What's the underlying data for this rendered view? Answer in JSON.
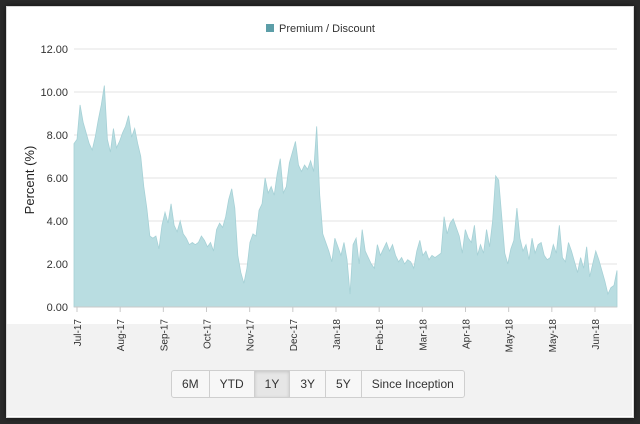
{
  "chart_data": {
    "type": "area",
    "legend": {
      "label": "Premium / Discount",
      "position": "top-center"
    },
    "ylabel": "Percent (%)",
    "ylim": [
      0,
      12
    ],
    "yticks": [
      "12.00",
      "10.00",
      "8.00",
      "6.00",
      "4.00",
      "2.00",
      "0.00"
    ],
    "ytick_values": [
      12,
      10,
      8,
      6,
      4,
      2,
      0
    ],
    "xticks": [
      "Jul-17",
      "Aug-17",
      "Sep-17",
      "Oct-17",
      "Nov-17",
      "Dec-17",
      "Jan-18",
      "Feb-18",
      "Mar-18",
      "Apr-18",
      "May-18",
      "May-18",
      "Jun-18"
    ],
    "grid": true,
    "colors": {
      "fill": "#b9dde1",
      "stroke": "#a6d1d6",
      "legend": "#5c9ea8"
    },
    "x": [
      "2017-07-01",
      "2017-07-03",
      "2017-07-05",
      "2017-07-07",
      "2017-07-09",
      "2017-07-11",
      "2017-07-13",
      "2017-07-15",
      "2017-07-17",
      "2017-07-19",
      "2017-07-21",
      "2017-07-23",
      "2017-07-25",
      "2017-07-27",
      "2017-07-29",
      "2017-07-31",
      "2017-08-02",
      "2017-08-04",
      "2017-08-06",
      "2017-08-08",
      "2017-08-10",
      "2017-08-12",
      "2017-08-14",
      "2017-08-16",
      "2017-08-18",
      "2017-08-20",
      "2017-08-22",
      "2017-08-24",
      "2017-08-26",
      "2017-08-28",
      "2017-08-30",
      "2017-09-01",
      "2017-09-03",
      "2017-09-05",
      "2017-09-07",
      "2017-09-09",
      "2017-09-11",
      "2017-09-13",
      "2017-09-15",
      "2017-09-17",
      "2017-09-19",
      "2017-09-21",
      "2017-09-23",
      "2017-09-25",
      "2017-09-27",
      "2017-09-29",
      "2017-10-01",
      "2017-10-03",
      "2017-10-05",
      "2017-10-07",
      "2017-10-09",
      "2017-10-11",
      "2017-10-13",
      "2017-10-15",
      "2017-10-17",
      "2017-10-19",
      "2017-10-21",
      "2017-10-23",
      "2017-10-25",
      "2017-10-27",
      "2017-10-29",
      "2017-10-31",
      "2017-11-02",
      "2017-11-04",
      "2017-11-06",
      "2017-11-08",
      "2017-11-10",
      "2017-11-12",
      "2017-11-14",
      "2017-11-16",
      "2017-11-18",
      "2017-11-20",
      "2017-11-22",
      "2017-11-24",
      "2017-11-26",
      "2017-11-28",
      "2017-11-30",
      "2017-12-02",
      "2017-12-04",
      "2017-12-06",
      "2017-12-08",
      "2017-12-10",
      "2017-12-12",
      "2017-12-14",
      "2017-12-16",
      "2017-12-18",
      "2017-12-20",
      "2017-12-22",
      "2017-12-24",
      "2017-12-26",
      "2017-12-28",
      "2017-12-30",
      "2018-01-01",
      "2018-01-03",
      "2018-01-05",
      "2018-01-07",
      "2018-01-09",
      "2018-01-11",
      "2018-01-13",
      "2018-01-15",
      "2018-01-17",
      "2018-01-19",
      "2018-01-21",
      "2018-01-23",
      "2018-01-25",
      "2018-01-27",
      "2018-01-29",
      "2018-01-31",
      "2018-02-02",
      "2018-02-04",
      "2018-02-06",
      "2018-02-08",
      "2018-02-10",
      "2018-02-12",
      "2018-02-14",
      "2018-02-16",
      "2018-02-18",
      "2018-02-20",
      "2018-02-22",
      "2018-02-24",
      "2018-02-26",
      "2018-02-28",
      "2018-03-02",
      "2018-03-04",
      "2018-03-06",
      "2018-03-08",
      "2018-03-10",
      "2018-03-12",
      "2018-03-14",
      "2018-03-16",
      "2018-03-18",
      "2018-03-20",
      "2018-03-22",
      "2018-03-24",
      "2018-03-26",
      "2018-03-28",
      "2018-03-30",
      "2018-04-01",
      "2018-04-03",
      "2018-04-05",
      "2018-04-07",
      "2018-04-09",
      "2018-04-11",
      "2018-04-13",
      "2018-04-15",
      "2018-04-17",
      "2018-04-19",
      "2018-04-21",
      "2018-04-23",
      "2018-04-25",
      "2018-04-27",
      "2018-04-29",
      "2018-05-01",
      "2018-05-03",
      "2018-05-05",
      "2018-05-07",
      "2018-05-09",
      "2018-05-11",
      "2018-05-13",
      "2018-05-15",
      "2018-05-17",
      "2018-05-19",
      "2018-05-21",
      "2018-05-23",
      "2018-05-25",
      "2018-05-27",
      "2018-05-29",
      "2018-05-31",
      "2018-06-02",
      "2018-06-04",
      "2018-06-06",
      "2018-06-08",
      "2018-06-10",
      "2018-06-12",
      "2018-06-14",
      "2018-06-16",
      "2018-06-18",
      "2018-06-20",
      "2018-06-22",
      "2018-06-24"
    ],
    "values": [
      7.6,
      7.8,
      9.4,
      8.6,
      8.1,
      7.6,
      7.3,
      7.9,
      8.7,
      9.4,
      10.3,
      7.8,
      7.2,
      8.3,
      7.4,
      7.7,
      8.1,
      8.4,
      8.9,
      7.9,
      8.3,
      7.6,
      7.0,
      5.6,
      4.6,
      3.3,
      3.2,
      3.3,
      2.7,
      3.8,
      4.4,
      3.9,
      4.8,
      3.8,
      3.5,
      4.0,
      3.4,
      3.2,
      2.9,
      3.0,
      2.9,
      3.0,
      3.3,
      3.1,
      2.8,
      3.0,
      2.6,
      3.6,
      3.9,
      3.7,
      4.2,
      5.0,
      5.5,
      4.6,
      2.4,
      1.6,
      1.1,
      1.8,
      3.0,
      3.4,
      3.3,
      4.5,
      4.8,
      6.0,
      5.3,
      5.6,
      5.2,
      6.2,
      6.9,
      5.3,
      5.6,
      6.7,
      7.2,
      7.7,
      6.6,
      6.3,
      6.6,
      6.4,
      6.8,
      6.3,
      8.4,
      5.2,
      3.4,
      3.0,
      2.6,
      2.1,
      3.2,
      2.8,
      2.4,
      3.0,
      2.2,
      0.6,
      2.9,
      3.2,
      2.0,
      3.6,
      2.6,
      2.3,
      2.0,
      1.8,
      2.9,
      2.4,
      2.7,
      3.0,
      2.6,
      2.9,
      2.4,
      2.1,
      2.3,
      2.0,
      2.2,
      2.1,
      1.8,
      2.6,
      3.1,
      2.4,
      2.6,
      2.2,
      2.4,
      2.3,
      2.4,
      2.5,
      4.2,
      3.4,
      3.9,
      4.1,
      3.7,
      3.3,
      2.5,
      3.6,
      3.2,
      3.0,
      3.8,
      2.4,
      2.9,
      2.5,
      3.6,
      2.8,
      4.0,
      6.1,
      5.9,
      4.2,
      2.5,
      2.0,
      2.7,
      3.1,
      4.6,
      3.2,
      2.6,
      2.9,
      2.2,
      3.2,
      2.5,
      2.9,
      3.0,
      2.4,
      2.2,
      2.3,
      2.9,
      2.5,
      3.8,
      2.3,
      2.1,
      3.0,
      2.6,
      2.1,
      1.6,
      2.3,
      1.8,
      2.8,
      1.4,
      2.0,
      2.6,
      2.2,
      1.7,
      1.2,
      0.6,
      0.9,
      1.0,
      1.7
    ]
  },
  "range_selector": {
    "buttons": [
      "6M",
      "YTD",
      "1Y",
      "3Y",
      "5Y",
      "Since Inception"
    ],
    "active": "1Y"
  }
}
